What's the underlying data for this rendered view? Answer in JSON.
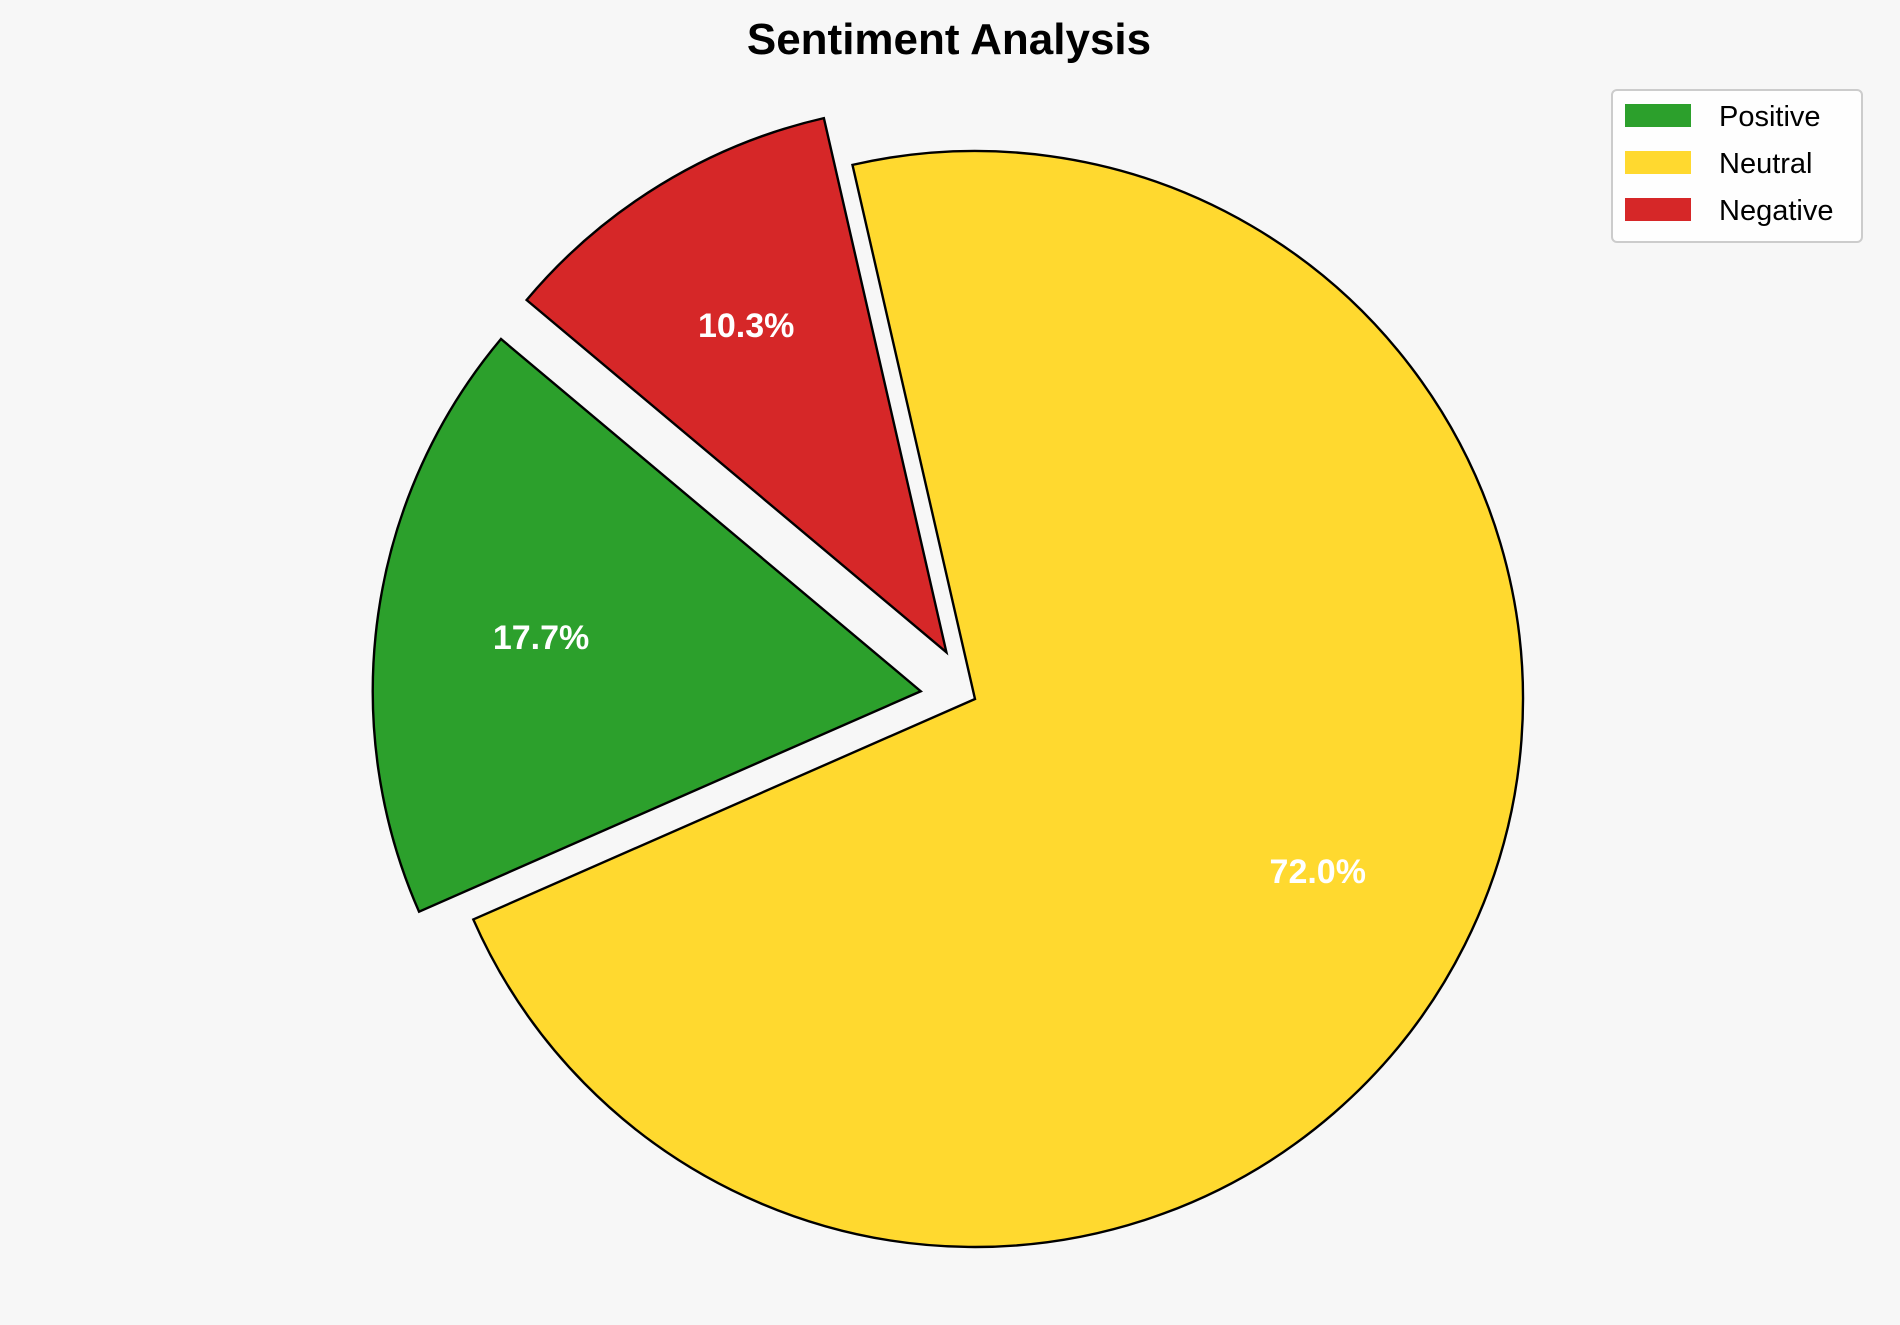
{
  "chart_data": {
    "type": "pie",
    "title": "Sentiment Analysis",
    "categories": [
      "Positive",
      "Neutral",
      "Negative"
    ],
    "values": [
      17.7,
      72.0,
      10.3
    ],
    "data_labels": [
      "17.7%",
      "72.0%",
      "10.3%"
    ],
    "colors": [
      "#2ca02c",
      "#ffd92f",
      "#d62728"
    ],
    "explode": [
      0.1,
      0,
      0.1
    ],
    "start_angle_deg": 140,
    "direction": "counterclockwise",
    "edge_color": "#000000",
    "legend_position": "top-right",
    "background": "#f7f7f7"
  }
}
